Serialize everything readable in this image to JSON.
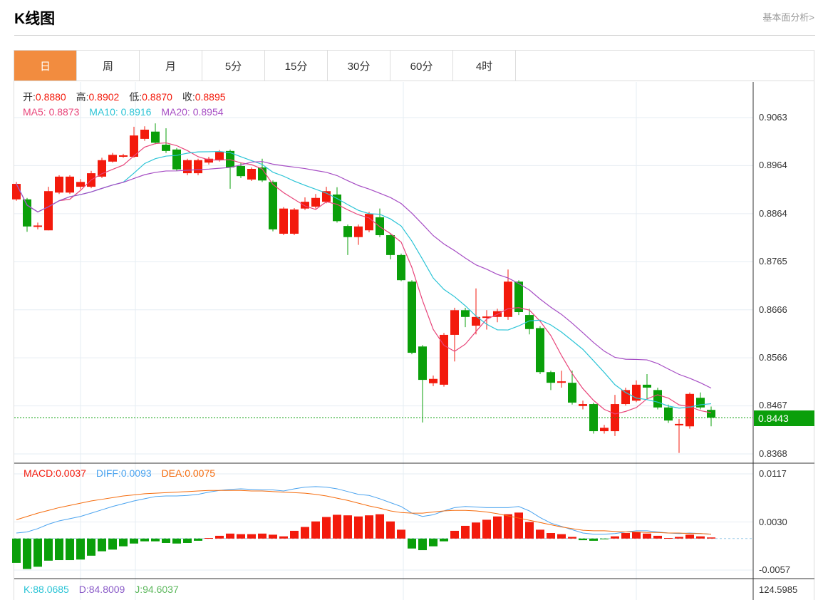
{
  "header": {
    "title": "K线图",
    "link": "基本面分析>"
  },
  "tabs": [
    {
      "label": "日",
      "active": true
    },
    {
      "label": "周"
    },
    {
      "label": "月"
    },
    {
      "label": "5分"
    },
    {
      "label": "15分"
    },
    {
      "label": "30分"
    },
    {
      "label": "60分"
    },
    {
      "label": "4时"
    }
  ],
  "ohlc_legend": {
    "open_label": "开:",
    "open": "0.8880",
    "high_label": "高:",
    "high": "0.8902",
    "low_label": "低:",
    "low": "0.8870",
    "close_label": "收:",
    "close": "0.8895"
  },
  "ma_legend": {
    "ma5": "MA5: 0.8873",
    "ma10": "MA10: 0.8916",
    "ma20": "MA20: 0.8954"
  },
  "macd_legend": {
    "macd": "MACD:0.0037",
    "diff": "DIFF:0.0093",
    "dea": "DEA:0.0075"
  },
  "kdj_legend": {
    "k": "K:88.0685",
    "d": "D:84.8009",
    "j": "J:94.6037"
  },
  "price_axis": [
    "0.9063",
    "0.8964",
    "0.8864",
    "0.8765",
    "0.8666",
    "0.8566",
    "0.8467",
    "0.8368"
  ],
  "current_price": "0.8443",
  "macd_axis": [
    "0.0117",
    "0.0030",
    "-0.0057"
  ],
  "kdj_axis": "124.5985",
  "colors": {
    "up": "#f31a0c",
    "down": "#0a9f0a",
    "ma5": "#e8457a",
    "ma10": "#2bc4d6",
    "ma20": "#a64dc4",
    "diff": "#4aa3ef",
    "dea": "#f56b0c",
    "accent": "#f28c3f"
  },
  "chart_data": {
    "type": "candlestick",
    "price_range": [
      0.8368,
      0.9063
    ],
    "candles": [
      [
        0.8894,
        0.8926,
        0.893,
        0.8891
      ],
      [
        0.8894,
        0.8838,
        0.8897,
        0.8827
      ],
      [
        0.8838,
        0.884,
        0.8846,
        0.8832
      ],
      [
        0.883,
        0.8911,
        0.892,
        0.883
      ],
      [
        0.8908,
        0.8941,
        0.8944,
        0.8905
      ],
      [
        0.8908,
        0.8941,
        0.8944,
        0.8905
      ],
      [
        0.892,
        0.893,
        0.8936,
        0.8915
      ],
      [
        0.892,
        0.8948,
        0.8953,
        0.8917
      ],
      [
        0.8941,
        0.8975,
        0.898,
        0.8938
      ],
      [
        0.8972,
        0.8986,
        0.899,
        0.897
      ],
      [
        0.8982,
        0.8985,
        0.8988,
        0.898
      ],
      [
        0.8982,
        0.9026,
        0.9044,
        0.898
      ],
      [
        0.9019,
        0.9038,
        0.9045,
        0.9015
      ],
      [
        0.9034,
        0.9011,
        0.9051,
        0.9008
      ],
      [
        0.9007,
        0.8994,
        0.9041,
        0.899
      ],
      [
        0.8997,
        0.8956,
        0.9,
        0.8953
      ],
      [
        0.8948,
        0.8975,
        0.8978,
        0.8944
      ],
      [
        0.8948,
        0.8975,
        0.8978,
        0.8944
      ],
      [
        0.897,
        0.8978,
        0.8982,
        0.8966
      ],
      [
        0.8975,
        0.8992,
        0.8996,
        0.8972
      ],
      [
        0.8994,
        0.896,
        0.8997,
        0.8916
      ],
      [
        0.8963,
        0.8942,
        0.897,
        0.8938
      ],
      [
        0.8935,
        0.8957,
        0.896,
        0.8932
      ],
      [
        0.896,
        0.8933,
        0.8978,
        0.893
      ],
      [
        0.893,
        0.8832,
        0.8933,
        0.8828
      ],
      [
        0.8823,
        0.8875,
        0.8878,
        0.882
      ],
      [
        0.8823,
        0.8873,
        0.8876,
        0.882
      ],
      [
        0.8875,
        0.8889,
        0.8898,
        0.8872
      ],
      [
        0.8879,
        0.8897,
        0.8905,
        0.8875
      ],
      [
        0.8889,
        0.8911,
        0.892,
        0.8886
      ],
      [
        0.8904,
        0.8849,
        0.8919,
        0.8846
      ],
      [
        0.8839,
        0.8816,
        0.8842,
        0.8779
      ],
      [
        0.8816,
        0.8838,
        0.8842,
        0.88
      ],
      [
        0.883,
        0.8864,
        0.8868,
        0.8826
      ],
      [
        0.8857,
        0.882,
        0.8875,
        0.8816
      ],
      [
        0.882,
        0.8779,
        0.8823,
        0.877
      ],
      [
        0.8779,
        0.8727,
        0.8782,
        0.8725
      ],
      [
        0.8724,
        0.8577,
        0.8727,
        0.8574
      ],
      [
        0.859,
        0.8521,
        0.8593,
        0.8433
      ],
      [
        0.8514,
        0.8523,
        0.853,
        0.8508
      ],
      [
        0.8511,
        0.8614,
        0.8618,
        0.8507
      ],
      [
        0.8614,
        0.8665,
        0.867,
        0.8559
      ],
      [
        0.8665,
        0.8651,
        0.867,
        0.863
      ],
      [
        0.8633,
        0.8651,
        0.871,
        0.8615
      ],
      [
        0.8649,
        0.8652,
        0.8665,
        0.8625
      ],
      [
        0.8651,
        0.8663,
        0.8668,
        0.864
      ],
      [
        0.8651,
        0.8724,
        0.8749,
        0.8645
      ],
      [
        0.8724,
        0.8661,
        0.8727,
        0.8655
      ],
      [
        0.8655,
        0.8626,
        0.8668,
        0.8615
      ],
      [
        0.8628,
        0.8537,
        0.8632,
        0.8533
      ],
      [
        0.8537,
        0.8515,
        0.854,
        0.85
      ],
      [
        0.8515,
        0.8518,
        0.854,
        0.8505
      ],
      [
        0.8515,
        0.8474,
        0.854,
        0.847
      ],
      [
        0.8467,
        0.8471,
        0.8478,
        0.846
      ],
      [
        0.8471,
        0.8415,
        0.8474,
        0.841
      ],
      [
        0.8415,
        0.8422,
        0.8428,
        0.841
      ],
      [
        0.8415,
        0.8471,
        0.849,
        0.8405
      ],
      [
        0.8471,
        0.85,
        0.8505,
        0.8468
      ],
      [
        0.8478,
        0.8511,
        0.852,
        0.8475
      ],
      [
        0.8511,
        0.8505,
        0.8533,
        0.848
      ],
      [
        0.85,
        0.8464,
        0.8505,
        0.846
      ],
      [
        0.8464,
        0.8437,
        0.847,
        0.8432
      ],
      [
        0.8427,
        0.843,
        0.844,
        0.837
      ],
      [
        0.8425,
        0.8492,
        0.8495,
        0.842
      ],
      [
        0.8484,
        0.8464,
        0.8495,
        0.846
      ],
      [
        0.8459,
        0.8443,
        0.8466,
        0.8425
      ]
    ],
    "macd_range": [
      -0.0057,
      0.0117
    ],
    "macd_hist": [
      -0.0044,
      -0.0055,
      -0.0051,
      -0.004,
      -0.0039,
      -0.0039,
      -0.0038,
      -0.0031,
      -0.0023,
      -0.002,
      -0.0014,
      -0.0009,
      -0.0005,
      -0.0005,
      -0.0008,
      -0.0009,
      -0.0008,
      -0.0004,
      0.0001,
      0.0005,
      0.0009,
      0.0008,
      0.0008,
      0.0009,
      0.0007,
      0.0004,
      0.0014,
      0.0021,
      0.0031,
      0.0039,
      0.0043,
      0.0042,
      0.004,
      0.0042,
      0.0044,
      0.0031,
      0.0016,
      -0.0018,
      -0.0021,
      -0.0014,
      -0.0005,
      0.0014,
      0.0023,
      0.0029,
      0.0034,
      0.004,
      0.0044,
      0.0047,
      0.003,
      0.0016,
      0.001,
      0.0008,
      0.0003,
      -0.0003,
      -0.0004,
      -0.0001,
      0.0004,
      0.001,
      0.0012,
      0.0009,
      0.0005,
      0.0001,
      0.0003,
      0.0007,
      0.0004,
      0.0002
    ],
    "diff": [
      0.001,
      0.0012,
      0.0018,
      0.0026,
      0.0032,
      0.0036,
      0.004,
      0.0046,
      0.0052,
      0.0058,
      0.0063,
      0.0068,
      0.0072,
      0.0076,
      0.0077,
      0.0077,
      0.0078,
      0.008,
      0.0084,
      0.0087,
      0.0089,
      0.009,
      0.0089,
      0.0088,
      0.0088,
      0.0086,
      0.009,
      0.0093,
      0.0094,
      0.0093,
      0.009,
      0.0085,
      0.008,
      0.0078,
      0.0072,
      0.0065,
      0.0058,
      0.0046,
      0.004,
      0.0043,
      0.005,
      0.0056,
      0.0058,
      0.0057,
      0.0056,
      0.0056,
      0.0056,
      0.0058,
      0.005,
      0.0038,
      0.0028,
      0.0022,
      0.0016,
      0.001,
      0.0008,
      0.0008,
      0.0009,
      0.0012,
      0.0014,
      0.0014,
      0.0012,
      0.001,
      0.0009,
      0.001,
      0.0009,
      0.0008
    ],
    "dea": [
      0.0034,
      0.004,
      0.0046,
      0.0051,
      0.0056,
      0.006,
      0.0064,
      0.0068,
      0.0071,
      0.0074,
      0.0077,
      0.0079,
      0.0081,
      0.0082,
      0.0083,
      0.0084,
      0.0085,
      0.0086,
      0.0087,
      0.0087,
      0.0087,
      0.0087,
      0.0086,
      0.0086,
      0.0085,
      0.0084,
      0.0083,
      0.0082,
      0.008,
      0.0077,
      0.0073,
      0.0069,
      0.0064,
      0.0059,
      0.0055,
      0.005,
      0.0047,
      0.0046,
      0.0046,
      0.0048,
      0.005,
      0.0051,
      0.0051,
      0.005,
      0.0048,
      0.0045,
      0.0041,
      0.0037,
      0.0033,
      0.0029,
      0.0025,
      0.0021,
      0.0018,
      0.0015,
      0.0014,
      0.0014,
      0.0013,
      0.0012,
      0.0012,
      0.0011,
      0.0011,
      0.001,
      0.001,
      0.0009,
      0.0009,
      0.0008
    ]
  }
}
